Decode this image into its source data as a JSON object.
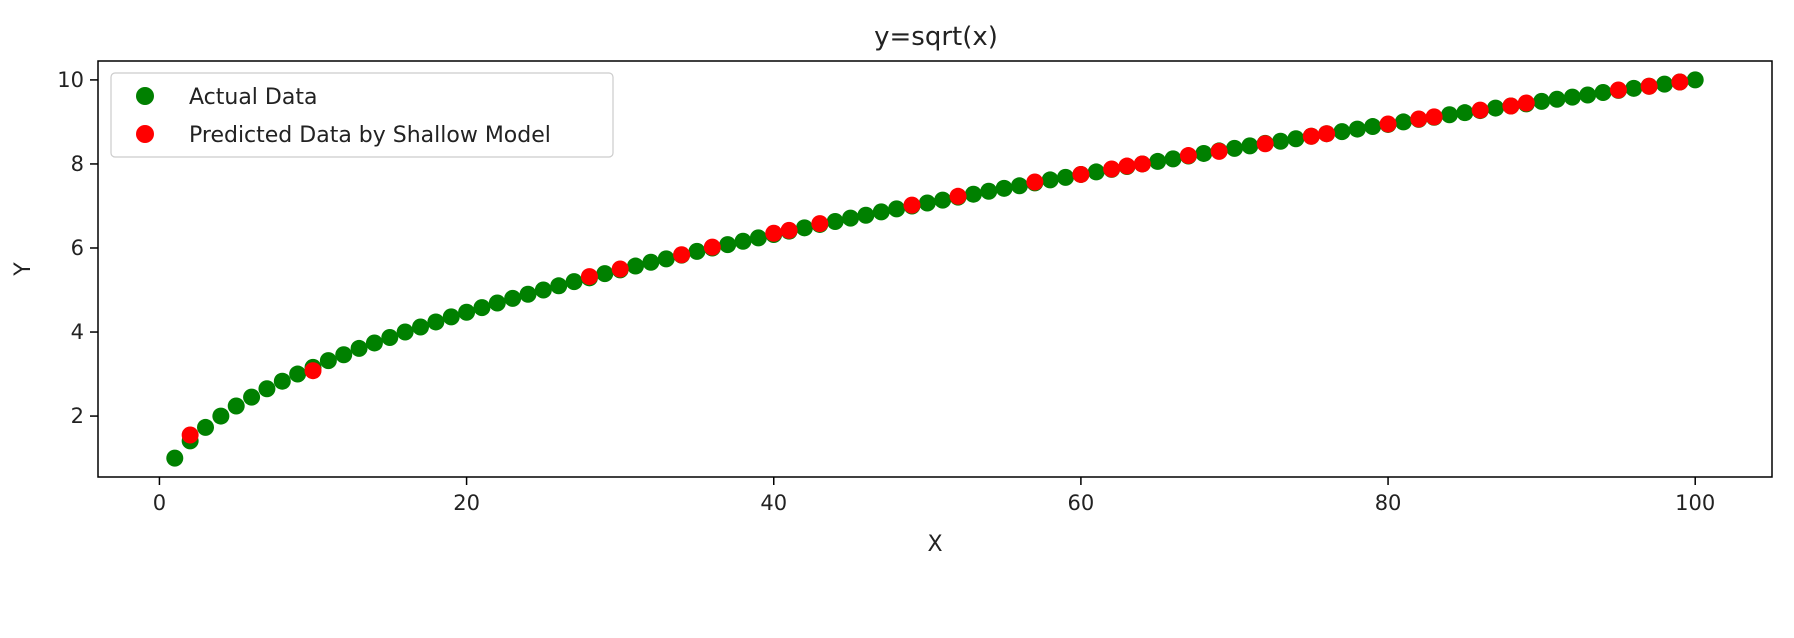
{
  "chart_data": {
    "type": "scatter",
    "title": "y=sqrt(x)",
    "xlabel": "X",
    "ylabel": "Y",
    "xlim": [
      -4,
      105
    ],
    "ylim": [
      0.55,
      10.45
    ],
    "xticks": [
      0,
      20,
      40,
      60,
      80,
      100
    ],
    "yticks": [
      2,
      4,
      6,
      8,
      10
    ],
    "grid": false,
    "legend_position": "upper-left",
    "series": [
      {
        "name": "Actual Data",
        "color": "#008000",
        "x": [
          1,
          2,
          3,
          4,
          5,
          6,
          7,
          8,
          9,
          10,
          11,
          12,
          13,
          14,
          15,
          16,
          17,
          18,
          19,
          20,
          21,
          22,
          23,
          24,
          25,
          26,
          27,
          28,
          29,
          30,
          31,
          32,
          33,
          34,
          35,
          36,
          37,
          38,
          39,
          40,
          41,
          42,
          43,
          44,
          45,
          46,
          47,
          48,
          49,
          50,
          51,
          52,
          53,
          54,
          55,
          56,
          57,
          58,
          59,
          60,
          61,
          62,
          63,
          64,
          65,
          66,
          67,
          68,
          69,
          70,
          71,
          72,
          73,
          74,
          75,
          76,
          77,
          78,
          79,
          80,
          81,
          82,
          83,
          84,
          85,
          86,
          87,
          88,
          89,
          90,
          91,
          92,
          93,
          94,
          95,
          96,
          97,
          98,
          99,
          100
        ],
        "y": [
          1.0,
          1.41,
          1.73,
          2.0,
          2.24,
          2.45,
          2.65,
          2.83,
          3.0,
          3.16,
          3.32,
          3.46,
          3.61,
          3.74,
          3.87,
          4.0,
          4.12,
          4.24,
          4.36,
          4.47,
          4.58,
          4.69,
          4.8,
          4.9,
          5.0,
          5.1,
          5.2,
          5.29,
          5.39,
          5.48,
          5.57,
          5.66,
          5.74,
          5.83,
          5.92,
          6.0,
          6.08,
          6.16,
          6.24,
          6.32,
          6.4,
          6.48,
          6.56,
          6.63,
          6.71,
          6.78,
          6.86,
          6.93,
          7.0,
          7.07,
          7.14,
          7.21,
          7.28,
          7.35,
          7.42,
          7.48,
          7.55,
          7.62,
          7.68,
          7.75,
          7.81,
          7.87,
          7.94,
          8.0,
          8.06,
          8.12,
          8.19,
          8.25,
          8.31,
          8.37,
          8.43,
          8.49,
          8.54,
          8.6,
          8.66,
          8.72,
          8.77,
          8.83,
          8.89,
          8.94,
          9.0,
          9.06,
          9.11,
          9.17,
          9.22,
          9.27,
          9.33,
          9.38,
          9.43,
          9.49,
          9.54,
          9.59,
          9.64,
          9.7,
          9.75,
          9.8,
          9.85,
          9.9,
          9.95,
          10.0
        ]
      },
      {
        "name": "Predicted Data by Shallow Model",
        "color": "#ff0000",
        "x": [
          2,
          10,
          28,
          30,
          34,
          36,
          40,
          41,
          43,
          49,
          52,
          57,
          60,
          62,
          63,
          64,
          67,
          69,
          72,
          75,
          76,
          80,
          82,
          83,
          86,
          88,
          89,
          95,
          97,
          99
        ],
        "y": [
          1.55,
          3.08,
          5.32,
          5.5,
          5.84,
          6.02,
          6.35,
          6.42,
          6.58,
          7.02,
          7.23,
          7.57,
          7.75,
          7.88,
          7.95,
          8.0,
          8.2,
          8.3,
          8.48,
          8.66,
          8.72,
          8.95,
          9.07,
          9.12,
          9.28,
          9.38,
          9.45,
          9.76,
          9.85,
          9.95
        ]
      }
    ]
  }
}
